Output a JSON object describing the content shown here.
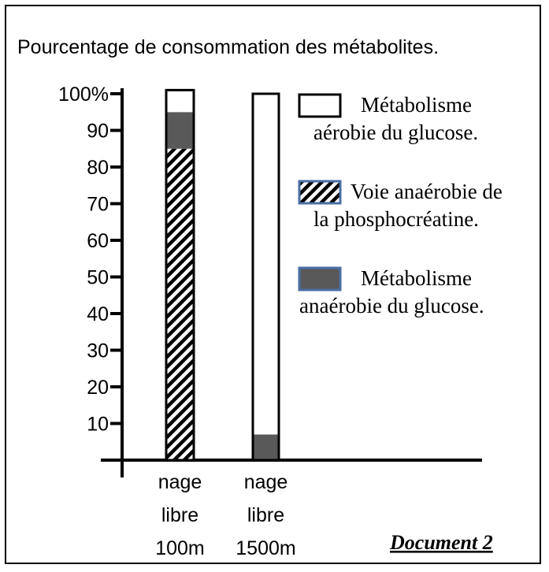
{
  "title": "Pourcentage de consommation des métabolites.",
  "document_label": "Document 2",
  "chart_data": {
    "type": "bar",
    "stacked": true,
    "categories": [
      [
        "nage",
        "libre",
        "100m"
      ],
      [
        "nage",
        "libre",
        "1500m"
      ]
    ],
    "y_ticks": [
      "10",
      "20",
      "30",
      "40",
      "50",
      "60",
      "70",
      "80",
      "90",
      "100%"
    ],
    "ylim": [
      0,
      100
    ],
    "series": [
      {
        "name": "Voie anaérobie de la phosphocréatine.",
        "legend_lines": [
          "Voie anaérobie de",
          "la phosphocréatine."
        ],
        "values": [
          85,
          0
        ],
        "fill": "hatch"
      },
      {
        "name": "Métabolisme anaérobie du glucose.",
        "legend_lines": [
          "Métabolisme",
          "anaérobie du glucose."
        ],
        "values": [
          10,
          7
        ],
        "fill": "#595959"
      },
      {
        "name": "Métabolisme aérobie du glucose.",
        "legend_lines": [
          "Métabolisme",
          "aérobie du glucose."
        ],
        "values": [
          6,
          93
        ],
        "fill": "#ffffff"
      }
    ],
    "legend_order": [
      2,
      0,
      1
    ],
    "legend_placement": "right",
    "grid": false
  }
}
